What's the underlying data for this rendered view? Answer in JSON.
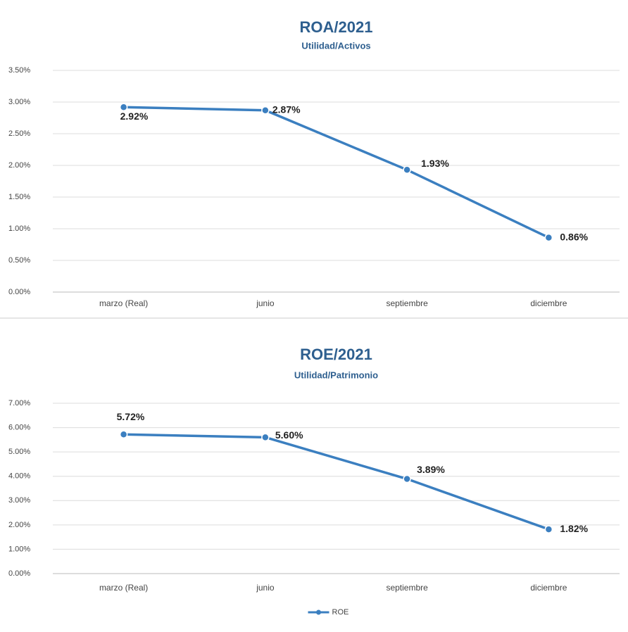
{
  "chart_data": [
    {
      "type": "line",
      "title": "ROA/2021",
      "subtitle": "Utilidad/Activos",
      "categories": [
        "marzo (Real)",
        "junio",
        "septiembre",
        "diciembre"
      ],
      "values": [
        2.92,
        2.87,
        1.93,
        0.86
      ],
      "value_labels": [
        "2.92%",
        "2.87%",
        "1.93%",
        "0.86%"
      ],
      "color": "#3b7fc0",
      "ylim": [
        0,
        3.5
      ],
      "yticks": [
        {
          "value": 0,
          "label": "0.00%"
        },
        {
          "value": 0.5,
          "label": "0.50%"
        },
        {
          "value": 1,
          "label": "1.00%"
        },
        {
          "value": 1.5,
          "label": "1.50%"
        },
        {
          "value": 2,
          "label": "2.00%"
        },
        {
          "value": 2.5,
          "label": "2.50%"
        },
        {
          "value": 3,
          "label": "3.00%"
        },
        {
          "value": 3.5,
          "label": "3.50%"
        }
      ],
      "grid": true
    },
    {
      "type": "line",
      "title": "ROE/2021",
      "subtitle": "Utilidad/Patrimonio",
      "categories": [
        "marzo (Real)",
        "junio",
        "septiembre",
        "diciembre"
      ],
      "series": [
        {
          "name": "ROE",
          "color": "#3b7fc0",
          "values": [
            5.72,
            5.6,
            3.89,
            1.82
          ],
          "value_labels": [
            "5.72%",
            "5.60%",
            "3.89%",
            "1.82%"
          ]
        }
      ],
      "ylim": [
        0,
        7
      ],
      "yticks": [
        {
          "value": 0,
          "label": "0.00%"
        },
        {
          "value": 1,
          "label": "1.00%"
        },
        {
          "value": 2,
          "label": "2.00%"
        },
        {
          "value": 3,
          "label": "3.00%"
        },
        {
          "value": 4,
          "label": "4.00%"
        },
        {
          "value": 5,
          "label": "5.00%"
        },
        {
          "value": 6,
          "label": "6.00%"
        },
        {
          "value": 7,
          "label": "7.00%"
        }
      ],
      "grid": true,
      "legend": "bottom"
    }
  ]
}
